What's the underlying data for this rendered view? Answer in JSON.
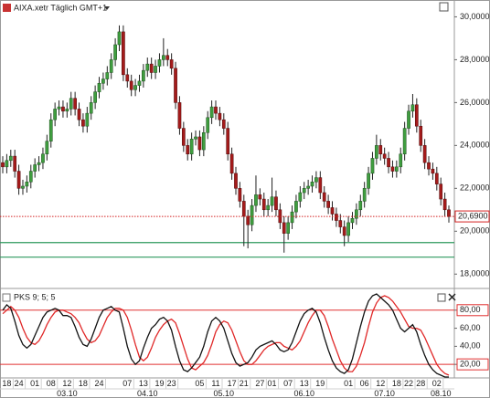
{
  "chart_data": [
    {
      "type": "candlestick",
      "title": "AIXA.xetr Täglich GMT+1",
      "categories": [
        null,
        "18",
        null,
        null,
        "24",
        null,
        null,
        null,
        "01",
        null,
        null,
        null,
        "08",
        null,
        null,
        null,
        "12",
        null,
        null,
        null,
        "18",
        null,
        null,
        null,
        "24",
        null,
        null,
        null,
        null,
        null,
        null,
        "07",
        null,
        null,
        null,
        "13",
        null,
        null,
        null,
        "19",
        null,
        null,
        "23",
        null,
        null,
        null,
        null,
        null,
        null,
        "05",
        null,
        null,
        null,
        "11",
        null,
        null,
        null,
        "17",
        null,
        null,
        "21",
        null,
        null,
        null,
        "27",
        null,
        null,
        "01",
        null,
        null,
        null,
        "07",
        null,
        null,
        null,
        "13",
        null,
        null,
        null,
        "19",
        null,
        null,
        null,
        null,
        null,
        null,
        "01",
        null,
        null,
        null,
        "06",
        null,
        null,
        null,
        "12",
        null,
        null,
        null,
        "18",
        null,
        null,
        "22",
        null,
        null,
        "28",
        null,
        null,
        null,
        "02",
        null,
        null,
        null
      ],
      "periods": [
        null,
        null,
        null,
        null,
        null,
        null,
        null,
        null,
        null,
        null,
        null,
        null,
        null,
        null,
        null,
        null,
        "03.10",
        null,
        null,
        null,
        null,
        null,
        null,
        null,
        null,
        null,
        null,
        null,
        null,
        null,
        null,
        null,
        null,
        null,
        null,
        null,
        "04.10",
        null,
        null,
        null,
        null,
        null,
        null,
        null,
        null,
        null,
        null,
        null,
        null,
        null,
        null,
        null,
        null,
        null,
        null,
        "05.10",
        null,
        null,
        null,
        null,
        null,
        null,
        null,
        null,
        null,
        null,
        null,
        null,
        null,
        null,
        null,
        null,
        null,
        null,
        null,
        "06.10",
        null,
        null,
        null,
        null,
        null,
        null,
        null,
        null,
        null,
        null,
        null,
        null,
        null,
        null,
        null,
        null,
        null,
        null,
        null,
        "07.10",
        null,
        null,
        null,
        null,
        null,
        null,
        null,
        null,
        null,
        null,
        null,
        null,
        null,
        "08.10",
        null,
        null
      ],
      "open": [
        23.2,
        23.0,
        23.3,
        23.5,
        22.8,
        22.0,
        22.1,
        22.3,
        22.8,
        23.1,
        23.2,
        23.6,
        24.2,
        25.2,
        25.7,
        25.8,
        25.6,
        25.7,
        26.2,
        25.7,
        25.2,
        24.9,
        25.5,
        26.0,
        26.5,
        26.9,
        27.1,
        27.4,
        28.0,
        28.7,
        29.3,
        27.3,
        27.0,
        26.6,
        26.8,
        27.0,
        27.5,
        27.8,
        27.4,
        27.7,
        28.0,
        28.2,
        28.0,
        27.6,
        26.0,
        24.8,
        24.0,
        23.6,
        24.3,
        24.4,
        23.8,
        24.6,
        25.3,
        25.8,
        25.5,
        25.2,
        24.8,
        23.6,
        22.7,
        22.0,
        21.4,
        20.7,
        20.3,
        21.2,
        21.7,
        21.5,
        21.0,
        21.2,
        21.6,
        21.0,
        20.4,
        19.9,
        20.4,
        20.9,
        21.4,
        21.8,
        22.0,
        22.1,
        22.3,
        22.5,
        21.8,
        21.4,
        21.1,
        20.8,
        20.5,
        20.2,
        19.8,
        20.4,
        20.6,
        21.0,
        21.4,
        22.0,
        22.7,
        23.4,
        24.0,
        23.6,
        23.4,
        23.0,
        22.8,
        23.0,
        23.6,
        24.8,
        25.6,
        25.9,
        24.9,
        24.0,
        23.2,
        22.9,
        22.7,
        22.2,
        21.5,
        21.0
      ],
      "high": [
        23.5,
        23.6,
        23.8,
        23.8,
        23.1,
        22.4,
        22.6,
        23.1,
        23.4,
        23.5,
        23.9,
        24.5,
        25.5,
        26.0,
        26.1,
        26.1,
        26.0,
        26.5,
        26.5,
        26.0,
        25.5,
        25.8,
        26.3,
        26.8,
        27.2,
        27.4,
        27.7,
        28.3,
        29.0,
        29.6,
        29.6,
        27.6,
        27.3,
        27.1,
        27.3,
        27.8,
        28.1,
        28.1,
        28.0,
        28.3,
        29.0,
        28.5,
        28.3,
        27.9,
        26.3,
        25.1,
        24.3,
        24.6,
        24.7,
        24.7,
        24.9,
        25.6,
        26.1,
        26.1,
        25.8,
        25.5,
        25.1,
        23.9,
        23.0,
        22.3,
        21.7,
        21.0,
        21.5,
        22.6,
        22.0,
        21.8,
        21.5,
        22.5,
        21.9,
        21.3,
        20.7,
        20.7,
        21.2,
        21.7,
        22.1,
        22.3,
        22.4,
        22.6,
        22.8,
        22.8,
        22.1,
        21.7,
        21.4,
        21.1,
        20.8,
        20.5,
        20.7,
        20.9,
        21.3,
        21.7,
        22.3,
        23.0,
        23.7,
        24.5,
        24.3,
        23.9,
        23.7,
        23.3,
        23.3,
        23.9,
        25.1,
        25.9,
        26.4,
        26.2,
        25.2,
        24.3,
        23.5,
        23.2,
        23.0,
        22.5,
        21.8,
        21.2
      ],
      "low": [
        22.7,
        22.7,
        23.0,
        22.5,
        21.7,
        21.7,
        21.8,
        22.0,
        22.5,
        22.8,
        22.9,
        23.3,
        23.9,
        24.9,
        25.4,
        25.3,
        25.3,
        25.4,
        25.4,
        24.9,
        24.6,
        24.6,
        25.2,
        25.7,
        26.2,
        26.6,
        26.8,
        27.1,
        27.7,
        28.4,
        27.0,
        26.7,
        26.3,
        26.3,
        26.5,
        26.7,
        27.2,
        27.1,
        27.1,
        27.4,
        27.7,
        27.7,
        27.3,
        25.7,
        24.5,
        23.7,
        23.3,
        23.3,
        24.0,
        23.5,
        23.5,
        24.3,
        25.0,
        25.2,
        24.9,
        24.5,
        23.3,
        22.4,
        21.7,
        21.1,
        19.3,
        19.2,
        20.0,
        20.9,
        21.2,
        20.7,
        20.7,
        20.9,
        20.7,
        20.1,
        19.0,
        19.6,
        20.1,
        20.6,
        21.1,
        21.5,
        21.7,
        21.8,
        22.0,
        21.5,
        21.1,
        20.8,
        20.5,
        20.2,
        19.9,
        19.3,
        19.5,
        20.1,
        20.3,
        20.7,
        21.1,
        21.7,
        22.4,
        23.1,
        23.3,
        23.1,
        22.7,
        22.5,
        22.5,
        22.7,
        23.3,
        24.5,
        25.3,
        24.6,
        23.7,
        22.9,
        22.6,
        22.4,
        21.9,
        21.2,
        20.7,
        20.4
      ],
      "close": [
        23.0,
        23.3,
        23.5,
        22.8,
        22.0,
        22.1,
        22.3,
        22.8,
        23.1,
        23.2,
        23.6,
        24.2,
        25.2,
        25.7,
        25.8,
        25.6,
        25.7,
        26.2,
        25.7,
        25.2,
        24.9,
        25.5,
        26.0,
        26.5,
        26.9,
        27.1,
        27.4,
        28.0,
        28.7,
        29.3,
        27.3,
        27.0,
        26.6,
        26.8,
        27.0,
        27.5,
        27.8,
        27.4,
        27.7,
        28.0,
        28.2,
        28.0,
        27.6,
        26.0,
        24.8,
        24.0,
        23.6,
        24.3,
        24.4,
        23.8,
        24.6,
        25.3,
        25.8,
        25.5,
        25.2,
        24.8,
        23.6,
        22.7,
        22.0,
        21.4,
        20.7,
        20.3,
        21.2,
        21.7,
        21.5,
        21.0,
        21.2,
        21.6,
        21.0,
        20.4,
        19.9,
        20.4,
        20.9,
        21.4,
        21.8,
        22.0,
        22.1,
        22.3,
        22.5,
        21.8,
        21.4,
        21.1,
        20.8,
        20.5,
        20.2,
        19.8,
        20.4,
        20.6,
        21.0,
        21.4,
        22.0,
        22.7,
        23.4,
        24.0,
        23.6,
        23.4,
        23.0,
        22.8,
        23.0,
        23.6,
        24.8,
        25.6,
        25.9,
        24.9,
        24.0,
        23.2,
        22.9,
        22.7,
        22.2,
        21.5,
        21.0,
        20.69
      ],
      "up_color": "#3f9e3f",
      "down_color": "#a51b1b",
      "ylim": [
        17.5,
        30.7
      ],
      "yticks": [
        {
          "value": 30,
          "label": "30,0000"
        },
        {
          "value": 28,
          "label": "28,0000"
        },
        {
          "value": 26,
          "label": "26,0000"
        },
        {
          "value": 24,
          "label": "24,0000"
        },
        {
          "value": 22,
          "label": "22,0000"
        },
        {
          "value": 20,
          "label": "20,0000"
        },
        {
          "value": 18,
          "label": "18,0000"
        }
      ],
      "last_price": {
        "value": 20.69,
        "label": "20,6900",
        "color": "#d42020"
      },
      "hlines": [
        {
          "value": 19.47,
          "color": "#2e9a5e"
        },
        {
          "value": 18.79,
          "color": "#2e9a5e"
        }
      ]
    },
    {
      "type": "line",
      "title": "PKS 9; 5; 5",
      "series": [
        {
          "color": "#111111",
          "values": [
            80,
            86,
            82,
            68,
            52,
            42,
            38,
            42,
            52,
            62,
            72,
            78,
            80,
            82,
            80,
            74,
            74,
            72,
            62,
            50,
            42,
            40,
            48,
            60,
            72,
            80,
            82,
            84,
            80,
            78,
            60,
            40,
            26,
            20,
            24,
            38,
            50,
            60,
            64,
            70,
            72,
            68,
            58,
            40,
            24,
            14,
            12,
            16,
            22,
            28,
            40,
            56,
            68,
            72,
            68,
            60,
            46,
            32,
            22,
            18,
            20,
            22,
            28,
            36,
            40,
            42,
            44,
            46,
            42,
            36,
            34,
            36,
            44,
            56,
            68,
            76,
            80,
            82,
            78,
            66,
            50,
            36,
            24,
            16,
            12,
            10,
            14,
            26,
            44,
            62,
            78,
            90,
            96,
            98,
            94,
            90,
            86,
            80,
            70,
            60,
            56,
            60,
            64,
            56,
            42,
            30,
            20,
            14,
            10,
            8,
            6,
            6
          ]
        },
        {
          "color": "#e02828",
          "values": [
            76,
            80,
            84,
            80,
            72,
            60,
            50,
            44,
            42,
            46,
            54,
            64,
            72,
            78,
            80,
            80,
            78,
            76,
            72,
            66,
            56,
            48,
            44,
            46,
            52,
            62,
            72,
            78,
            82,
            82,
            80,
            72,
            58,
            42,
            28,
            24,
            28,
            38,
            50,
            58,
            64,
            68,
            70,
            66,
            54,
            40,
            26,
            16,
            14,
            18,
            22,
            30,
            42,
            56,
            64,
            68,
            66,
            58,
            46,
            34,
            24,
            20,
            20,
            24,
            30,
            36,
            40,
            42,
            44,
            44,
            40,
            38,
            36,
            40,
            46,
            56,
            66,
            74,
            80,
            80,
            74,
            62,
            48,
            36,
            24,
            16,
            12,
            12,
            18,
            30,
            44,
            62,
            78,
            88,
            94,
            96,
            94,
            90,
            84,
            78,
            70,
            62,
            60,
            60,
            58,
            50,
            40,
            30,
            20,
            14,
            10,
            8
          ]
        }
      ],
      "ylim": [
        5,
        100
      ],
      "yticks": [
        {
          "value": 80,
          "label": "80,00"
        },
        {
          "value": 60,
          "label": "60,00"
        },
        {
          "value": 40,
          "label": "40,00"
        },
        {
          "value": 20,
          "label": "20,00"
        }
      ],
      "levels": [
        80,
        20
      ],
      "level_color": "#e03030"
    }
  ]
}
